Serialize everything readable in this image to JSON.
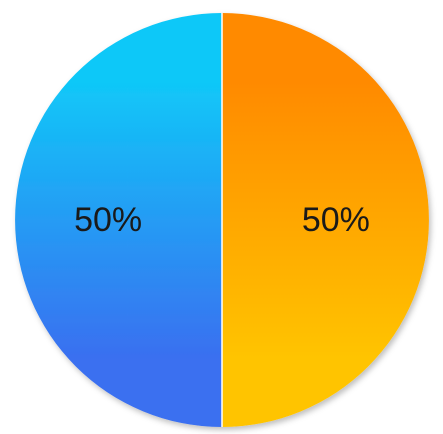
{
  "chart_data": {
    "type": "pie",
    "slices": [
      {
        "label": "50%",
        "value": 50,
        "color_start": "#FF8A00",
        "color_end": "#FFC400"
      },
      {
        "label": "50%",
        "value": 50,
        "color_start": "#3A6FF0",
        "color_end": "#10C8F8"
      }
    ],
    "title": "",
    "legend": "none"
  }
}
